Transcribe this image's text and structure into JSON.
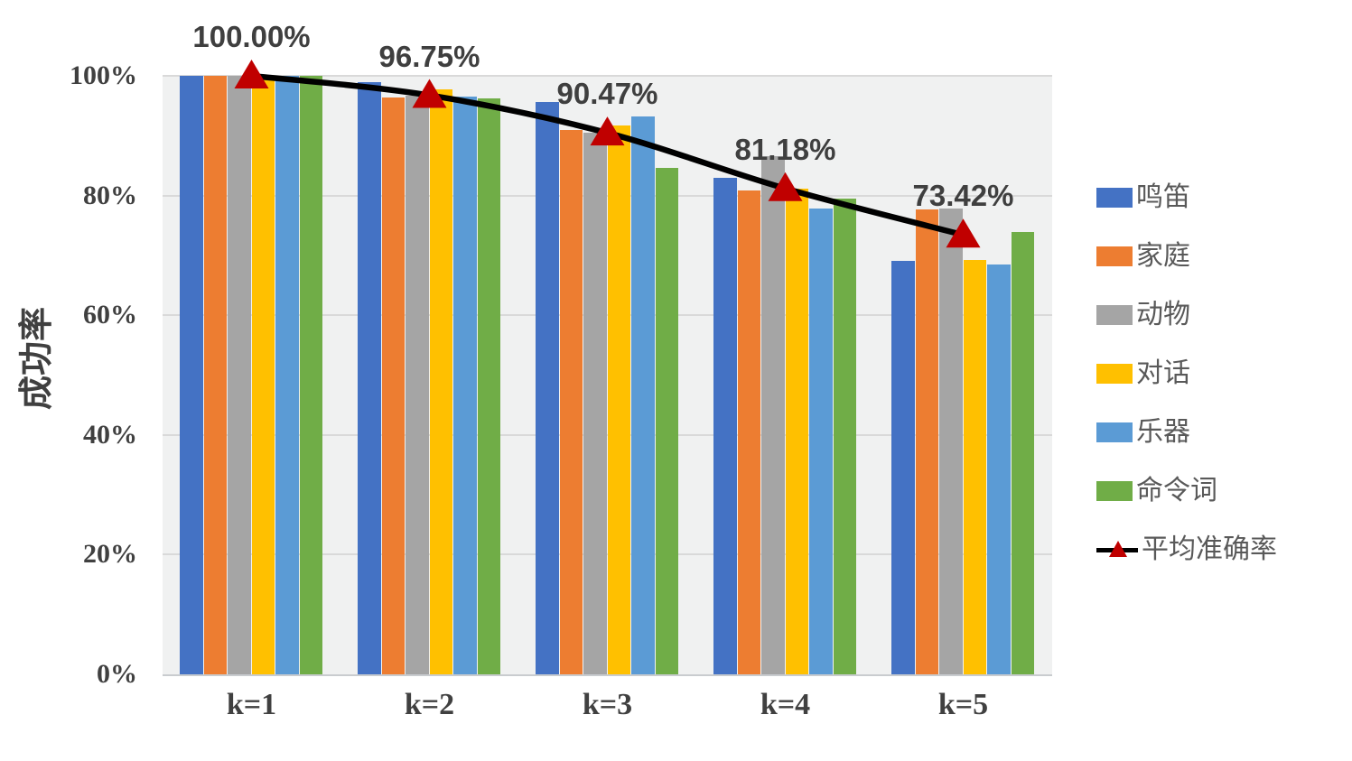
{
  "chart_data": {
    "type": "bar",
    "title": "",
    "xlabel": "",
    "ylabel": "成功率",
    "ylim": [
      0,
      100
    ],
    "grid": true,
    "legend_position": "right",
    "categories": [
      "k=1",
      "k=2",
      "k=3",
      "k=4",
      "k=5"
    ],
    "y_ticks": [
      {
        "label": "100%",
        "value": 100
      },
      {
        "label": "80%",
        "value": 80
      },
      {
        "label": "60%",
        "value": 60
      },
      {
        "label": "40%",
        "value": 40
      },
      {
        "label": "20%",
        "value": 20
      },
      {
        "label": "0%",
        "value": 0
      }
    ],
    "series": [
      {
        "name": "鸣笛",
        "color": "#4472C4",
        "values": [
          100,
          99.0,
          95.7,
          83.0,
          69.1
        ]
      },
      {
        "name": "家庭",
        "color": "#ED7D31",
        "values": [
          100,
          96.4,
          91.0,
          80.9,
          77.7
        ]
      },
      {
        "name": "动物",
        "color": "#A5A5A5",
        "values": [
          100,
          96.7,
          90.5,
          86.6,
          77.9
        ]
      },
      {
        "name": "对话",
        "color": "#FFC000",
        "values": [
          100,
          97.7,
          91.7,
          81.1,
          69.3
        ]
      },
      {
        "name": "乐器",
        "color": "#5B9BD5",
        "values": [
          100,
          96.5,
          93.2,
          77.9,
          68.5
        ]
      },
      {
        "name": "命令词",
        "color": "#70AD47",
        "values": [
          100,
          96.3,
          84.6,
          79.5,
          73.9
        ]
      }
    ],
    "line_series": {
      "name": "平均准确率",
      "line_color": "#000000",
      "marker": "triangle",
      "marker_color": "#C00000",
      "values": [
        100.0,
        96.75,
        90.47,
        81.18,
        73.42
      ],
      "labels": [
        "100.00%",
        "96.75%",
        "90.47%",
        "81.18%",
        "73.42%"
      ]
    },
    "colors": {
      "plot_background": "#F0F1F1",
      "gridline": "#D9D9D9",
      "axis_line": "#C9CCCF",
      "tick_text": "#404040",
      "data_label_text": "#3F3F3F",
      "legend_text": "#595959"
    }
  }
}
